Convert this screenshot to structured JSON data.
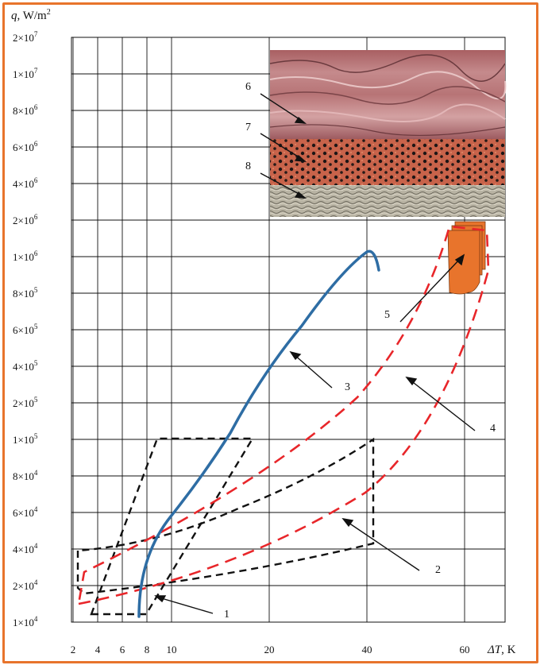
{
  "chart_data": {
    "type": "line",
    "ylabel_var": "q",
    "ylabel_unit": ", W/m",
    "ylabel_sup": "2",
    "xlabel_var": "ΔT",
    "xlabel_unit": ", K",
    "x_ticks": [
      "2",
      "4",
      "6",
      "8",
      "10",
      "20",
      "40",
      "60"
    ],
    "y_ticks": [
      {
        "mant": "2×10",
        "exp": "7"
      },
      {
        "mant": "1×10",
        "exp": "7"
      },
      {
        "mant": "8×10",
        "exp": "6"
      },
      {
        "mant": "6×10",
        "exp": "6"
      },
      {
        "mant": "4×10",
        "exp": "6"
      },
      {
        "mant": "2×10",
        "exp": "6"
      },
      {
        "mant": "1×10",
        "exp": "6"
      },
      {
        "mant": "8×10",
        "exp": "5"
      },
      {
        "mant": "6×10",
        "exp": "5"
      },
      {
        "mant": "4×10",
        "exp": "5"
      },
      {
        "mant": "2×10",
        "exp": "5"
      },
      {
        "mant": "1×10",
        "exp": "5"
      },
      {
        "mant": "8×10",
        "exp": "4"
      },
      {
        "mant": "6×10",
        "exp": "4"
      },
      {
        "mant": "4×10",
        "exp": "4"
      },
      {
        "mant": "2×10",
        "exp": "4"
      },
      {
        "mant": "1×10",
        "exp": "4"
      }
    ],
    "annotations": [
      "1",
      "2",
      "3",
      "4",
      "5",
      "6",
      "7",
      "8"
    ],
    "grid": true,
    "colors": {
      "curve3": "#2E6DA4",
      "region4": "#E8262A",
      "dashed_regions": "#111111",
      "sample5": "#E8742C",
      "frame": "#E8742C"
    }
  }
}
